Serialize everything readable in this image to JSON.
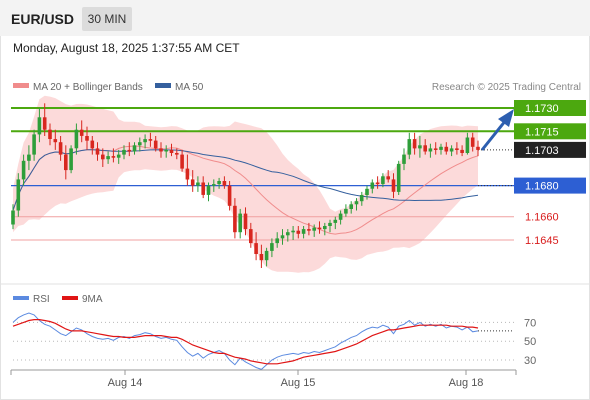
{
  "header": {
    "symbol": "EUR/USD",
    "timeframe": "30 MIN",
    "datetime": "Monday, August 18, 2025 1:37:55 AM CET"
  },
  "legend": {
    "items": [
      {
        "label": "MA 20 + Bollinger Bands",
        "color": "#f08c8c"
      },
      {
        "label": "MA 50",
        "color": "#35609e"
      }
    ],
    "credit": "Research © 2025 Trading Central"
  },
  "rsi_legend": {
    "items": [
      {
        "label": "RSI",
        "color": "#5b8ae0"
      },
      {
        "label": "9MA",
        "color": "#e01515"
      }
    ]
  },
  "colors": {
    "bull": "#2e9e3a",
    "bear": "#d8271f",
    "resistance": "#4ca80f",
    "support": "#2d5fd3",
    "minor": "#f0a0a0",
    "band": "#fcd3d3",
    "ma50": "#35609e",
    "arrow": "#2d5fb0"
  },
  "chart_data": [
    {
      "type": "candlestick",
      "x_ticks": [
        "Aug 14",
        "Aug 15",
        "Aug 18"
      ],
      "ylim": [
        1.162,
        1.174
      ],
      "candles": [
        [
          1.1655,
          1.1668,
          1.1652,
          1.1664
        ],
        [
          1.1664,
          1.1688,
          1.166,
          1.1684
        ],
        [
          1.1684,
          1.17,
          1.168,
          1.1696
        ],
        [
          1.1696,
          1.1706,
          1.169,
          1.17
        ],
        [
          1.17,
          1.1716,
          1.1696,
          1.1713
        ],
        [
          1.1713,
          1.173,
          1.1708,
          1.1724
        ],
        [
          1.1724,
          1.1733,
          1.1712,
          1.1716
        ],
        [
          1.1716,
          1.172,
          1.1706,
          1.171
        ],
        [
          1.171,
          1.1716,
          1.1703,
          1.1708
        ],
        [
          1.1708,
          1.1712,
          1.1696,
          1.17
        ],
        [
          1.17,
          1.1706,
          1.1684,
          1.169
        ],
        [
          1.169,
          1.1706,
          1.1688,
          1.1704
        ],
        [
          1.1704,
          1.172,
          1.17,
          1.1716
        ],
        [
          1.1716,
          1.1722,
          1.1708,
          1.1712
        ],
        [
          1.1712,
          1.1718,
          1.1703,
          1.1709
        ],
        [
          1.1709,
          1.1712,
          1.17,
          1.1704
        ],
        [
          1.1704,
          1.1708,
          1.1696,
          1.17
        ],
        [
          1.17,
          1.1704,
          1.1692,
          1.1697
        ],
        [
          1.1697,
          1.1702,
          1.1694,
          1.1699
        ],
        [
          1.1699,
          1.1704,
          1.1695,
          1.1698
        ],
        [
          1.1698,
          1.1703,
          1.1694,
          1.17
        ],
        [
          1.17,
          1.1706,
          1.1697,
          1.1703
        ],
        [
          1.1703,
          1.1708,
          1.1699,
          1.1702
        ],
        [
          1.1702,
          1.1708,
          1.17,
          1.1706
        ],
        [
          1.1706,
          1.1711,
          1.1702,
          1.1708
        ],
        [
          1.1708,
          1.1713,
          1.1704,
          1.171
        ],
        [
          1.171,
          1.1714,
          1.1705,
          1.1709
        ],
        [
          1.1709,
          1.1712,
          1.1702,
          1.1704
        ],
        [
          1.1704,
          1.1708,
          1.1698,
          1.1702
        ],
        [
          1.1702,
          1.1706,
          1.1698,
          1.1703
        ],
        [
          1.1703,
          1.1707,
          1.1699,
          1.1701
        ],
        [
          1.1701,
          1.1704,
          1.1697,
          1.17
        ],
        [
          1.17,
          1.1703,
          1.1689,
          1.1691
        ],
        [
          1.1691,
          1.17,
          1.168,
          1.1684
        ],
        [
          1.1684,
          1.169,
          1.1676,
          1.168
        ],
        [
          1.168,
          1.1686,
          1.1676,
          1.1682
        ],
        [
          1.1682,
          1.1686,
          1.1672,
          1.1674
        ],
        [
          1.1674,
          1.1682,
          1.167,
          1.168
        ],
        [
          1.168,
          1.1684,
          1.1676,
          1.1681
        ],
        [
          1.1681,
          1.1685,
          1.1678,
          1.1683
        ],
        [
          1.1683,
          1.1686,
          1.1678,
          1.168
        ],
        [
          1.168,
          1.1683,
          1.1664,
          1.1667
        ],
        [
          1.1667,
          1.1672,
          1.1646,
          1.165
        ],
        [
          1.165,
          1.1665,
          1.1646,
          1.1662
        ],
        [
          1.1662,
          1.1666,
          1.1648,
          1.1652
        ],
        [
          1.1652,
          1.1656,
          1.164,
          1.1643
        ],
        [
          1.1643,
          1.165,
          1.1632,
          1.1636
        ],
        [
          1.1636,
          1.1642,
          1.1627,
          1.1632
        ],
        [
          1.1632,
          1.164,
          1.1628,
          1.1638
        ],
        [
          1.1638,
          1.1646,
          1.1634,
          1.1643
        ],
        [
          1.1643,
          1.165,
          1.164,
          1.1646
        ],
        [
          1.1646,
          1.1652,
          1.1642,
          1.1648
        ],
        [
          1.1648,
          1.1652,
          1.1644,
          1.165
        ],
        [
          1.165,
          1.1654,
          1.1645,
          1.1651
        ],
        [
          1.1651,
          1.1654,
          1.1646,
          1.1649
        ],
        [
          1.1649,
          1.1654,
          1.1646,
          1.1652
        ],
        [
          1.1652,
          1.1656,
          1.1648,
          1.1651
        ],
        [
          1.1651,
          1.1655,
          1.1647,
          1.1653
        ],
        [
          1.1653,
          1.1657,
          1.1649,
          1.1652
        ],
        [
          1.1652,
          1.1656,
          1.1648,
          1.1654
        ],
        [
          1.1654,
          1.1658,
          1.165,
          1.1656
        ],
        [
          1.1656,
          1.166,
          1.1652,
          1.1658
        ],
        [
          1.1658,
          1.1664,
          1.1655,
          1.1662
        ],
        [
          1.1662,
          1.1668,
          1.166,
          1.1665
        ],
        [
          1.1665,
          1.167,
          1.1662,
          1.1668
        ],
        [
          1.1668,
          1.1672,
          1.1664,
          1.167
        ],
        [
          1.167,
          1.1676,
          1.1667,
          1.1674
        ],
        [
          1.1674,
          1.168,
          1.1671,
          1.1678
        ],
        [
          1.1678,
          1.1684,
          1.1675,
          1.1682
        ],
        [
          1.1682,
          1.1686,
          1.1678,
          1.1681
        ],
        [
          1.1681,
          1.1688,
          1.1679,
          1.1686
        ],
        [
          1.1686,
          1.169,
          1.1682,
          1.1684
        ],
        [
          1.1684,
          1.1688,
          1.1672,
          1.1676
        ],
        [
          1.1676,
          1.1696,
          1.1674,
          1.1694
        ],
        [
          1.1694,
          1.1704,
          1.169,
          1.17
        ],
        [
          1.17,
          1.1714,
          1.1697,
          1.171
        ],
        [
          1.171,
          1.1714,
          1.17,
          1.1704
        ],
        [
          1.1704,
          1.1712,
          1.1698,
          1.1706
        ],
        [
          1.1706,
          1.171,
          1.17,
          1.1702
        ],
        [
          1.1702,
          1.1707,
          1.1698,
          1.1704
        ],
        [
          1.1704,
          1.1708,
          1.17,
          1.1703
        ],
        [
          1.1703,
          1.1707,
          1.17,
          1.1705
        ],
        [
          1.1705,
          1.1708,
          1.17,
          1.1702
        ],
        [
          1.1702,
          1.1706,
          1.1699,
          1.1704
        ],
        [
          1.1704,
          1.1708,
          1.17,
          1.1703
        ],
        [
          1.1703,
          1.1706,
          1.1699,
          1.1701
        ],
        [
          1.1701,
          1.1714,
          1.17,
          1.1711
        ],
        [
          1.1711,
          1.1714,
          1.1702,
          1.1705
        ],
        [
          1.1705,
          1.1709,
          1.1699,
          1.1703
        ]
      ],
      "levels": [
        {
          "value": 1.173,
          "label": "1.1730",
          "kind": "resistance"
        },
        {
          "value": 1.1715,
          "label": "1.1715",
          "kind": "resistance"
        },
        {
          "value": 1.1703,
          "label": "1.1703",
          "kind": "last"
        },
        {
          "value": 1.168,
          "label": "1.1680",
          "kind": "support"
        },
        {
          "value": 1.166,
          "label": "1.1660",
          "kind": "minor"
        },
        {
          "value": 1.1645,
          "label": "1.1645",
          "kind": "minor"
        }
      ]
    },
    {
      "type": "line",
      "name": "RSI",
      "y_ticks": [
        70,
        50,
        30
      ],
      "ylim": [
        20,
        90
      ],
      "series": [
        {
          "name": "RSI",
          "values": [
            70,
            75,
            78,
            80,
            78,
            72,
            68,
            66,
            62,
            58,
            56,
            60,
            64,
            62,
            58,
            55,
            53,
            52,
            53,
            51,
            54,
            55,
            53,
            56,
            57,
            59,
            58,
            55,
            53,
            54,
            52,
            51,
            44,
            38,
            34,
            37,
            32,
            36,
            38,
            40,
            37,
            30,
            25,
            32,
            28,
            25,
            22,
            20,
            25,
            30,
            33,
            35,
            36,
            37,
            36,
            38,
            37,
            39,
            38,
            40,
            42,
            44,
            48,
            51,
            54,
            56,
            60,
            63,
            65,
            64,
            67,
            65,
            58,
            66,
            68,
            72,
            67,
            70,
            66,
            68,
            66,
            68,
            64,
            66,
            65,
            62,
            65,
            60,
            61
          ]
        },
        {
          "name": "9MA",
          "values": [
            66,
            68,
            70,
            72,
            73,
            73,
            72,
            71,
            69,
            66,
            63,
            61,
            61,
            61,
            60,
            59,
            58,
            57,
            56,
            55,
            55,
            54,
            54,
            54,
            55,
            56,
            56,
            56,
            56,
            55,
            54,
            54,
            52,
            49,
            46,
            44,
            42,
            40,
            38,
            37,
            37,
            35,
            33,
            32,
            31,
            29,
            28,
            27,
            26,
            26,
            26,
            27,
            28,
            29,
            31,
            33,
            34,
            35,
            36,
            37,
            38,
            39,
            41,
            43,
            45,
            47,
            50,
            53,
            56,
            58,
            60,
            62,
            62,
            63,
            64,
            65,
            66,
            67,
            67,
            67,
            67,
            67,
            67,
            66,
            66,
            66,
            65,
            65,
            64
          ]
        }
      ]
    }
  ]
}
